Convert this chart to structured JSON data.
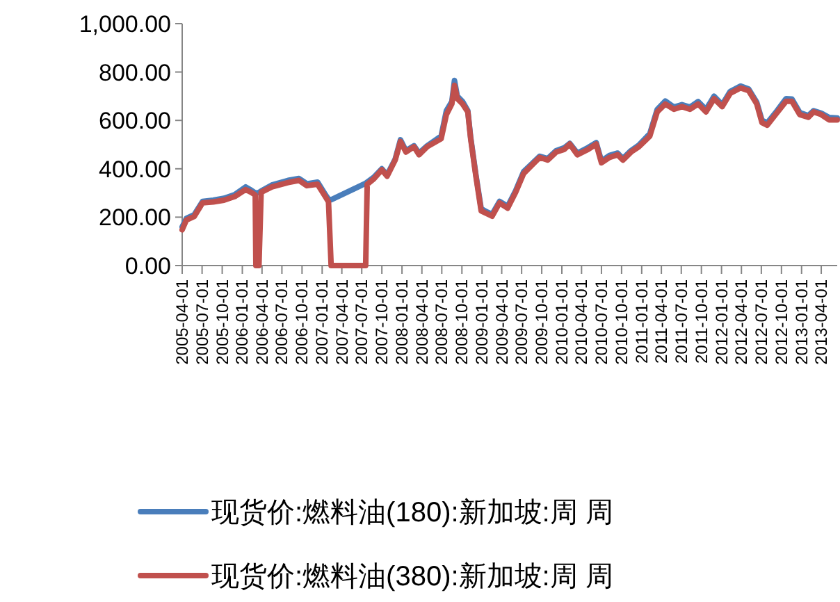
{
  "chart_data": {
    "type": "line",
    "x": [
      "2005-04-01",
      "2005-04-20",
      "2005-05-26",
      "2005-07-03",
      "2005-08-21",
      "2005-10-09",
      "2005-11-27",
      "2006-01-16",
      "2006-02-10",
      "2006-03-01",
      "2006-03-04",
      "2006-03-18",
      "2006-03-28",
      "2006-05-16",
      "2006-07-29",
      "2006-09-17",
      "2006-10-23",
      "2006-12-11",
      "2007-01-18",
      "2007-01-30",
      "2007-02-11",
      "2007-07-19",
      "2007-07-26",
      "2007-08-25",
      "2007-10-01",
      "2007-10-25",
      "2007-12-01",
      "2007-12-25",
      "2008-01-19",
      "2008-02-25",
      "2008-03-19",
      "2008-04-25",
      "2008-06-28",
      "2008-07-22",
      "2008-08-16",
      "2008-08-28",
      "2008-09-10",
      "2008-10-04",
      "2008-10-28",
      "2008-11-10",
      "2008-12-04",
      "2008-12-28",
      "2009-01-22",
      "2009-02-16",
      "2009-03-22",
      "2009-04-28",
      "2009-06-04",
      "2009-07-10",
      "2009-08-16",
      "2009-09-22",
      "2009-10-28",
      "2009-12-06",
      "2010-01-12",
      "2010-02-06",
      "2010-03-13",
      "2010-05-01",
      "2010-06-07",
      "2010-07-01",
      "2010-08-07",
      "2010-09-13",
      "2010-10-07",
      "2010-11-13",
      "2010-12-19",
      "2011-02-07",
      "2011-03-13",
      "2011-04-19",
      "2011-05-28",
      "2011-07-04",
      "2011-08-10",
      "2011-09-16",
      "2011-10-22",
      "2011-11-28",
      "2012-01-04",
      "2012-02-10",
      "2012-03-28",
      "2012-05-04",
      "2012-06-10",
      "2012-07-04",
      "2012-07-28",
      "2012-09-04",
      "2012-10-22",
      "2012-11-18",
      "2012-12-24",
      "2013-02-01",
      "2013-02-25",
      "2013-04-01",
      "2013-05-07",
      "2013-06-13"
    ],
    "series": [
      {
        "name": "现货价:燃料油(180):新加坡:周 周",
        "color": "#4a7ebb",
        "values": [
          160,
          195,
          210,
          265,
          270,
          278,
          293,
          325,
          312,
          300,
          300,
          302,
          308,
          333,
          352,
          360,
          338,
          345,
          290,
          275,
          272,
          340,
          345,
          365,
          400,
          375,
          440,
          520,
          475,
          495,
          465,
          495,
          535,
          640,
          678,
          765,
          700,
          678,
          640,
          530,
          375,
          235,
          222,
          212,
          265,
          245,
          310,
          388,
          420,
          452,
          442,
          475,
          487,
          505,
          465,
          488,
          508,
          432,
          455,
          465,
          442,
          475,
          498,
          545,
          645,
          680,
          655,
          665,
          655,
          678,
          645,
          700,
          665,
          720,
          742,
          730,
          675,
          600,
          590,
          632,
          690,
          688,
          632,
          620,
          640,
          630,
          612,
          610
        ]
      },
      {
        "name": "现货价:燃料油(380):新加坡:周 周",
        "color": "#c0504d",
        "values": [
          148,
          188,
          203,
          259,
          263,
          270,
          285,
          314,
          303,
          292,
          0,
          0,
          303,
          325,
          343,
          352,
          330,
          336,
          281,
          263,
          0,
          0,
          336,
          358,
          396,
          369,
          436,
          513,
          469,
          491,
          458,
          491,
          524,
          624,
          668,
          745,
          690,
          668,
          635,
          524,
          369,
          226,
          215,
          204,
          259,
          237,
          303,
          380,
          414,
          447,
          436,
          469,
          480,
          502,
          458,
          480,
          502,
          425,
          447,
          458,
          436,
          469,
          491,
          535,
          635,
          668,
          646,
          657,
          646,
          668,
          635,
          690,
          657,
          712,
          734,
          723,
          668,
          591,
          580,
          624,
          679,
          679,
          624,
          613,
          635,
          624,
          602,
          602
        ]
      }
    ],
    "xlim": [
      "2005-04-01",
      "2013-06-13"
    ],
    "xticks": [
      "2005-04-01",
      "2005-07-01",
      "2005-10-01",
      "2006-01-01",
      "2006-04-01",
      "2006-07-01",
      "2006-10-01",
      "2007-01-01",
      "2007-04-01",
      "2007-07-01",
      "2007-10-01",
      "2008-01-01",
      "2008-04-01",
      "2008-07-01",
      "2008-10-01",
      "2009-01-01",
      "2009-04-01",
      "2009-07-01",
      "2009-10-01",
      "2010-01-01",
      "2010-04-01",
      "2010-07-01",
      "2010-10-01",
      "2011-01-01",
      "2011-04-01",
      "2011-07-01",
      "2011-10-01",
      "2012-01-01",
      "2012-04-01",
      "2012-07-01",
      "2012-10-01",
      "2013-01-01",
      "2013-04-01"
    ],
    "ylim": [
      0,
      1000
    ],
    "yticks": [
      {
        "value": 0,
        "label": "0.00"
      },
      {
        "value": 200,
        "label": "200.00"
      },
      {
        "value": 400,
        "label": "400.00"
      },
      {
        "value": 600,
        "label": "600.00"
      },
      {
        "value": 800,
        "label": "800.00"
      },
      {
        "value": 1000,
        "label": "1,000.00"
      }
    ],
    "legend": "bottom",
    "line_style": "solid"
  }
}
